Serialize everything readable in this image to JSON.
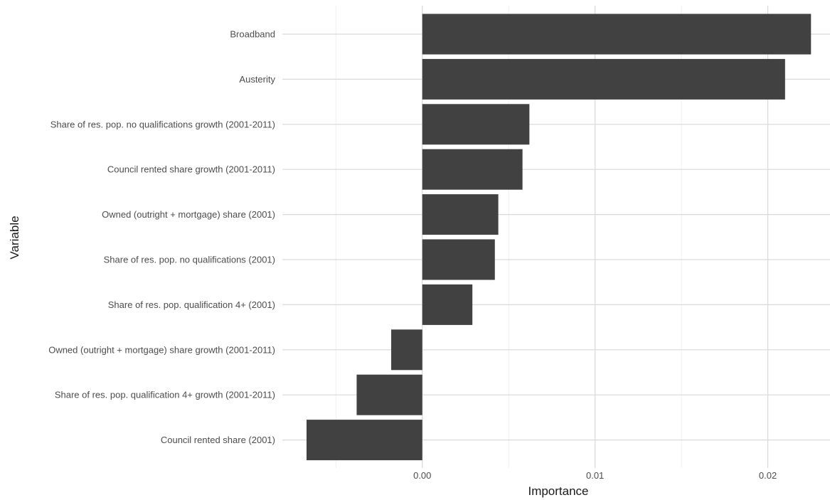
{
  "chart_data": {
    "type": "bar",
    "orientation": "horizontal",
    "xlabel": "Importance",
    "ylabel": "Variable",
    "xlim": [
      -0.0081,
      0.0236
    ],
    "x_ticks": [
      {
        "value": 0.0,
        "label": "0.00"
      },
      {
        "value": 0.01,
        "label": "0.01"
      },
      {
        "value": 0.02,
        "label": "0.02"
      }
    ],
    "x_minor_ticks": [
      -0.005,
      0.005,
      0.015
    ],
    "grid": true,
    "bar_color": "#414141",
    "categories": [
      "Broadband",
      "Austerity",
      "Share of res. pop. no qualifications growth (2001-2011)",
      "Council rented share growth (2001-2011)",
      "Owned (outright + mortgage) share (2001)",
      "Share of res. pop. no qualifications (2001)",
      "Share of res. pop. qualification 4+ (2001)",
      "Owned (outright + mortgage) share growth (2001-2011)",
      "Share of res. pop. qualification 4+ growth (2001-2011)",
      "Council rented share (2001)"
    ],
    "values": [
      0.0225,
      0.021,
      0.0062,
      0.0058,
      0.0044,
      0.0042,
      0.0029,
      -0.0018,
      -0.0038,
      -0.0067
    ]
  }
}
